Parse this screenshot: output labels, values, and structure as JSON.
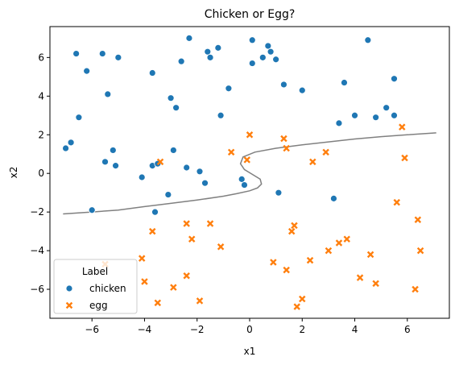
{
  "chart_data": {
    "type": "scatter",
    "title": "Chicken or Egg?",
    "xlabel": "x1",
    "ylabel": "x2",
    "xlim": [
      -7.6,
      7.6
    ],
    "ylim": [
      -7.5,
      7.6
    ],
    "xticks": [
      "−6",
      "−4",
      "−2",
      "0",
      "2",
      "4",
      "6"
    ],
    "xtick_values": [
      -6,
      -4,
      -2,
      0,
      2,
      4,
      6
    ],
    "yticks": [
      "−6",
      "−4",
      "−2",
      "0",
      "2",
      "4",
      "6"
    ],
    "ytick_values": [
      -6,
      -4,
      -2,
      0,
      2,
      4,
      6
    ],
    "grid": false,
    "legend": {
      "title": "Label",
      "placement": "lower-left"
    },
    "series": [
      {
        "name": "chicken",
        "marker": "circle",
        "color": "#1f77b4",
        "points": [
          [
            -6.6,
            6.2
          ],
          [
            -5.6,
            6.2
          ],
          [
            -5.0,
            6.0
          ],
          [
            -6.2,
            5.3
          ],
          [
            -5.4,
            4.1
          ],
          [
            -6.5,
            2.9
          ],
          [
            -6.8,
            1.6
          ],
          [
            -7.0,
            1.3
          ],
          [
            -5.5,
            0.6
          ],
          [
            -5.2,
            1.2
          ],
          [
            -5.1,
            0.4
          ],
          [
            -6.0,
            -1.9
          ],
          [
            -3.7,
            5.2
          ],
          [
            -3.0,
            3.9
          ],
          [
            -2.8,
            3.4
          ],
          [
            -2.6,
            5.8
          ],
          [
            -2.3,
            7.0
          ],
          [
            -1.6,
            6.3
          ],
          [
            -1.5,
            6.0
          ],
          [
            -1.2,
            6.5
          ],
          [
            -0.8,
            4.4
          ],
          [
            -1.1,
            3.0
          ],
          [
            -2.9,
            1.2
          ],
          [
            -3.7,
            0.4
          ],
          [
            -3.5,
            0.5
          ],
          [
            -4.1,
            -0.2
          ],
          [
            -2.4,
            0.3
          ],
          [
            -1.9,
            0.1
          ],
          [
            -1.7,
            -0.5
          ],
          [
            -3.1,
            -1.1
          ],
          [
            -3.6,
            -2.0
          ],
          [
            0.1,
            6.9
          ],
          [
            0.5,
            6.0
          ],
          [
            0.7,
            6.6
          ],
          [
            0.8,
            6.3
          ],
          [
            1.0,
            5.9
          ],
          [
            0.1,
            5.7
          ],
          [
            1.3,
            4.6
          ],
          [
            2.0,
            4.3
          ],
          [
            1.1,
            -1.0
          ],
          [
            -0.3,
            -0.3
          ],
          [
            -0.2,
            -0.6
          ],
          [
            3.6,
            4.7
          ],
          [
            4.5,
            6.9
          ],
          [
            5.5,
            4.9
          ],
          [
            5.2,
            3.4
          ],
          [
            4.8,
            2.9
          ],
          [
            4.0,
            3.0
          ],
          [
            3.4,
            2.6
          ],
          [
            3.2,
            -1.3
          ],
          [
            5.5,
            3.0
          ]
        ]
      },
      {
        "name": "egg",
        "marker": "x",
        "color": "#ff7f0e",
        "points": [
          [
            0.0,
            2.0
          ],
          [
            1.3,
            1.8
          ],
          [
            1.4,
            1.3
          ],
          [
            -0.7,
            1.1
          ],
          [
            -0.1,
            0.7
          ],
          [
            -3.4,
            0.6
          ],
          [
            2.4,
            0.6
          ],
          [
            2.9,
            1.1
          ],
          [
            5.8,
            2.4
          ],
          [
            5.9,
            0.8
          ],
          [
            -2.4,
            -2.6
          ],
          [
            -1.5,
            -2.6
          ],
          [
            -3.7,
            -3.0
          ],
          [
            -2.2,
            -3.4
          ],
          [
            -1.1,
            -3.8
          ],
          [
            -4.1,
            -4.4
          ],
          [
            -4.0,
            -5.6
          ],
          [
            -2.9,
            -5.9
          ],
          [
            -2.4,
            -5.3
          ],
          [
            -3.5,
            -6.7
          ],
          [
            -1.9,
            -6.6
          ],
          [
            -5.5,
            -4.7
          ],
          [
            1.7,
            -2.7
          ],
          [
            1.6,
            -3.0
          ],
          [
            2.3,
            -4.5
          ],
          [
            3.0,
            -4.0
          ],
          [
            3.4,
            -3.6
          ],
          [
            3.7,
            -3.4
          ],
          [
            0.9,
            -4.6
          ],
          [
            1.4,
            -5.0
          ],
          [
            4.2,
            -5.4
          ],
          [
            4.6,
            -4.2
          ],
          [
            4.8,
            -5.7
          ],
          [
            5.6,
            -1.5
          ],
          [
            6.4,
            -2.4
          ],
          [
            6.5,
            -4.0
          ],
          [
            6.3,
            -6.0
          ],
          [
            1.8,
            -6.9
          ],
          [
            2.0,
            -6.5
          ]
        ]
      }
    ],
    "decision_boundary": {
      "color": "#808080",
      "points": [
        [
          -7.1,
          -2.1
        ],
        [
          -6.0,
          -2.0
        ],
        [
          -5.0,
          -1.9
        ],
        [
          -4.0,
          -1.72
        ],
        [
          -3.0,
          -1.55
        ],
        [
          -2.0,
          -1.38
        ],
        [
          -1.0,
          -1.18
        ],
        [
          -0.5,
          -1.05
        ],
        [
          0.0,
          -0.9
        ],
        [
          0.3,
          -0.75
        ],
        [
          0.45,
          -0.55
        ],
        [
          0.4,
          -0.3
        ],
        [
          0.1,
          -0.05
        ],
        [
          -0.2,
          0.2
        ],
        [
          -0.35,
          0.5
        ],
        [
          -0.25,
          0.85
        ],
        [
          0.2,
          1.1
        ],
        [
          1.0,
          1.3
        ],
        [
          2.0,
          1.48
        ],
        [
          3.0,
          1.63
        ],
        [
          4.0,
          1.78
        ],
        [
          5.0,
          1.9
        ],
        [
          6.0,
          2.0
        ],
        [
          7.1,
          2.1
        ]
      ]
    }
  }
}
